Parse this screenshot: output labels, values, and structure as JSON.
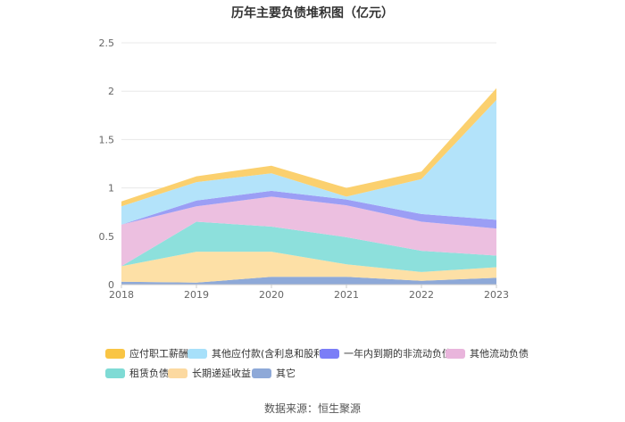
{
  "chart_data": {
    "type": "area",
    "stacked": true,
    "title": "历年主要负债堆积图（亿元）",
    "x": [
      "2018",
      "2019",
      "2020",
      "2021",
      "2022",
      "2023"
    ],
    "ylim": [
      0,
      2.5
    ],
    "yticks": [
      "0",
      "0.5",
      "1",
      "1.5",
      "2",
      "2.5"
    ],
    "grid": true,
    "legend_position": "bottom",
    "series": [
      {
        "name": "其它",
        "color": "#8ea9d8",
        "values": [
          0.03,
          0.02,
          0.08,
          0.08,
          0.04,
          0.07
        ]
      },
      {
        "name": "长期递延收益",
        "color": "#fde0a6",
        "values": [
          0.16,
          0.32,
          0.26,
          0.13,
          0.09,
          0.11
        ]
      },
      {
        "name": "租赁负债",
        "color": "#8de0dc",
        "values": [
          0.0,
          0.31,
          0.26,
          0.28,
          0.22,
          0.12
        ]
      },
      {
        "name": "其他流动负债",
        "color": "#ecbfe0",
        "values": [
          0.43,
          0.16,
          0.31,
          0.33,
          0.3,
          0.28
        ]
      },
      {
        "name": "一年内到期的非流动负债",
        "color": "#9b9ef5",
        "values": [
          0.0,
          0.06,
          0.06,
          0.06,
          0.08,
          0.09
        ]
      },
      {
        "name": "其他应付款(含利息和股利)",
        "color": "#b3e3fa",
        "values": [
          0.19,
          0.19,
          0.18,
          0.03,
          0.36,
          1.24
        ]
      },
      {
        "name": "应付职工薪酬",
        "color": "#fbd06e",
        "values": [
          0.05,
          0.06,
          0.08,
          0.09,
          0.08,
          0.12
        ]
      }
    ]
  },
  "legend_rows": [
    [
      {
        "label": "应付职工薪酬",
        "color": "#f9c544"
      },
      {
        "label": "其他应付款(含利息和股利)",
        "color": "#a7e0fa"
      },
      {
        "label": "一年内到期的非流动负债",
        "color": "#7b7ef7"
      },
      {
        "label": "其他流动负债",
        "color": "#e9b5dc"
      }
    ],
    [
      {
        "label": "租赁负债",
        "color": "#7fdbd5"
      },
      {
        "label": "长期递延收益",
        "color": "#fcd9a0"
      },
      {
        "label": "其它",
        "color": "#8ea9d8"
      }
    ]
  ],
  "source": "数据来源：恒生聚源"
}
